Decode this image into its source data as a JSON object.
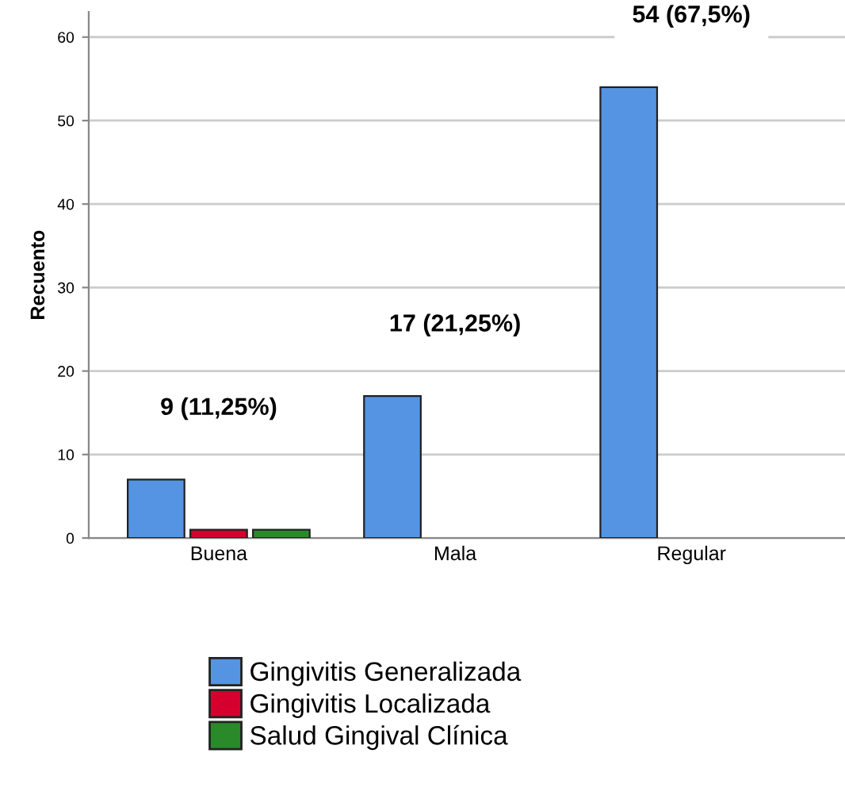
{
  "chart_data": {
    "type": "bar",
    "ylabel": "Recuento",
    "categories": [
      "Buena",
      "Mala",
      "Regular"
    ],
    "series": [
      {
        "name": "Gingivitis Generalizada",
        "color": "#5594e2",
        "values": [
          7,
          17,
          54
        ]
      },
      {
        "name": "Gingivitis Localizada",
        "color": "#d6002f",
        "values": [
          1,
          0,
          0
        ]
      },
      {
        "name": "Salud Gingival Clínica",
        "color": "#2a8a2a",
        "values": [
          1,
          0,
          0
        ]
      }
    ],
    "ylim": [
      0,
      63
    ],
    "yticks": [
      0,
      10,
      20,
      30,
      40,
      50,
      60
    ],
    "grid": "y",
    "legend": "bottom",
    "annotations": [
      "9 (11,25%)",
      "17 (21,25%)",
      "54 (67,5%)"
    ]
  }
}
